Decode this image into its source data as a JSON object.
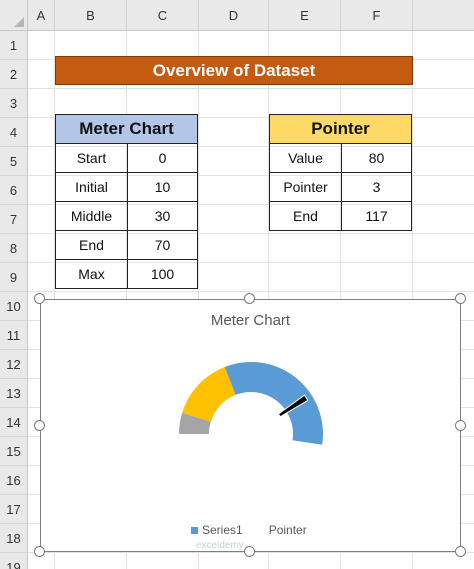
{
  "columns": [
    "A",
    "B",
    "C",
    "D",
    "E",
    "F"
  ],
  "rows": [
    "1",
    "2",
    "3",
    "4",
    "5",
    "6",
    "7",
    "8",
    "9",
    "10",
    "11",
    "12",
    "13",
    "14",
    "15",
    "16",
    "17",
    "18",
    "19"
  ],
  "title_bar": "Overview of Dataset",
  "meter_table": {
    "header": "Meter Chart",
    "rows": [
      [
        "Start",
        "0"
      ],
      [
        "Initial",
        "10"
      ],
      [
        "Middle",
        "30"
      ],
      [
        "End",
        "70"
      ],
      [
        "Max",
        "100"
      ]
    ]
  },
  "pointer_table": {
    "header": "Pointer",
    "rows": [
      [
        "Value",
        "80"
      ],
      [
        "Pointer",
        "3"
      ],
      [
        "End",
        "117"
      ]
    ]
  },
  "chart_data": {
    "type": "doughnut-gauge",
    "title": "Meter Chart",
    "series": [
      {
        "name": "Series1",
        "categories": [
          "Start",
          "Initial",
          "Middle",
          "End",
          "Max"
        ],
        "values": [
          0,
          10,
          30,
          70,
          100
        ]
      },
      {
        "name": "Pointer",
        "categories": [
          "Value",
          "Pointer",
          "End"
        ],
        "values": [
          80,
          3,
          117
        ]
      }
    ],
    "colors": {
      "initial": "#a5a5a5",
      "middle": "#ffc000",
      "end": "#5b9bd5",
      "pointer": "#000000"
    },
    "legend": [
      "Series1",
      "Pointer"
    ],
    "legend_position": "bottom"
  },
  "watermark": "exceldemy"
}
